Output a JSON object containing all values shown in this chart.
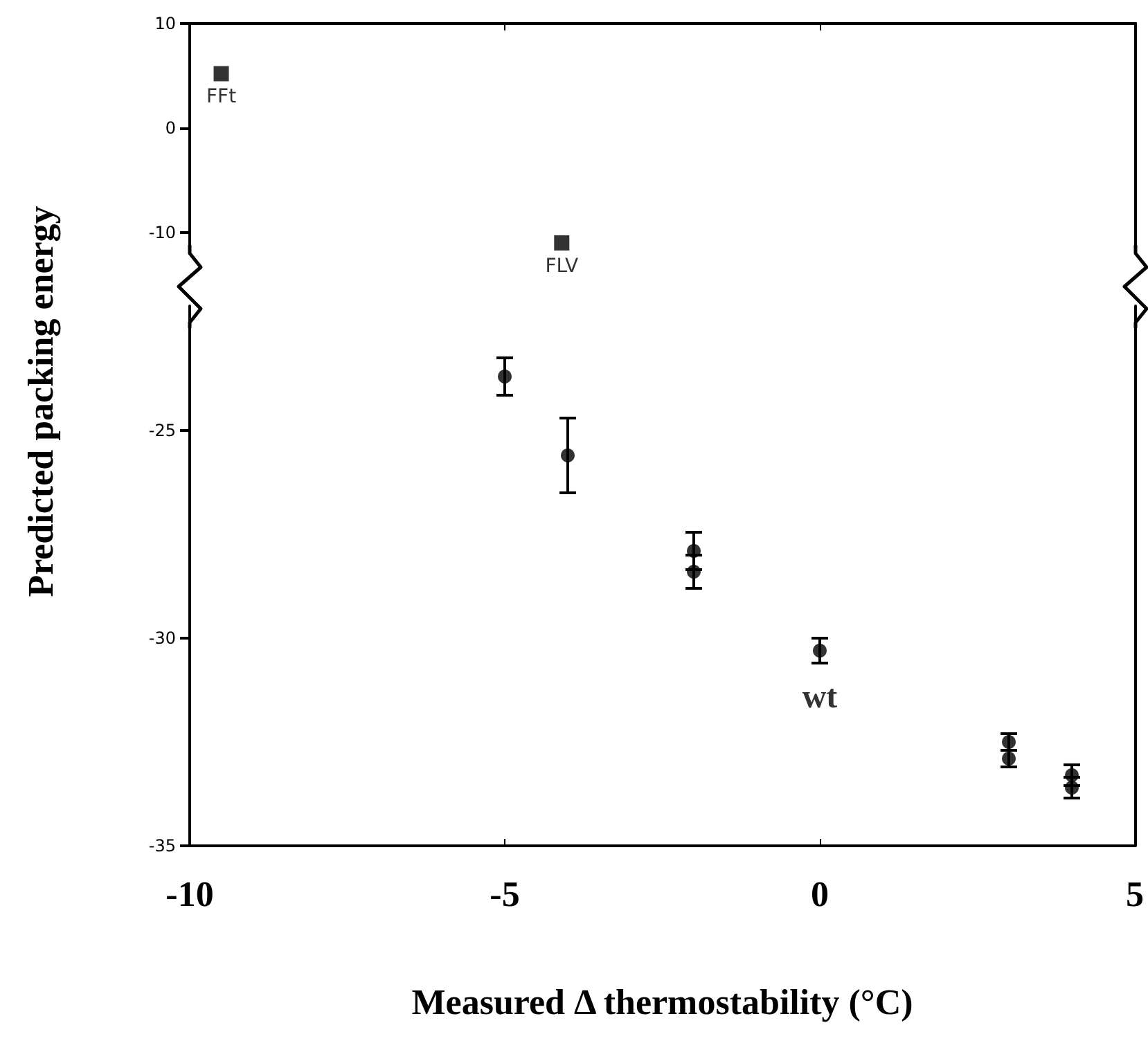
{
  "chart_data": [
    {
      "type": "scatter",
      "x": [
        -9.5,
        -4.1
      ],
      "series": [
        {
          "color": "#000000",
          "values": [
            5.2,
            -11.0
          ]
        }
      ],
      "marker": "square",
      "xlim": [
        -10,
        5
      ],
      "xticks": [
        -10,
        -5,
        0,
        5
      ],
      "ylim": [
        -12,
        10
      ],
      "yticks": [
        10,
        0,
        -10
      ],
      "tick_labels": "y",
      "annotations": [
        {
          "text": "FFt",
          "x": -9.5,
          "y": 5.2
        },
        {
          "text": "FLV",
          "x": -4.1,
          "y": -11.0
        }
      ]
    },
    {
      "type": "scatter",
      "x": [
        -5,
        -4,
        -2,
        -2,
        0,
        3,
        3,
        4,
        4
      ],
      "series": [
        {
          "color": "#000000",
          "values": [
            -23.7,
            -25.6,
            -27.9,
            -28.4,
            -30.3,
            -32.5,
            -32.9,
            -33.3,
            -33.6
          ],
          "errors": [
            0.45,
            0.9,
            0.45,
            0.4,
            0.3,
            0.2,
            0.2,
            0.25,
            0.25
          ]
        }
      ],
      "marker": "circle",
      "xlim": [
        -10,
        5
      ],
      "xticks": [
        -10,
        -5,
        0,
        5
      ],
      "ylim": [
        -35,
        -22
      ],
      "yticks": [
        -25,
        -30,
        -35
      ],
      "xlabel": "Measured Δ thermostability (°C)",
      "ylabel": "Predicted packing energy",
      "annotations": [
        {
          "text": "wt",
          "x": 0,
          "y": -30.3
        }
      ]
    }
  ]
}
